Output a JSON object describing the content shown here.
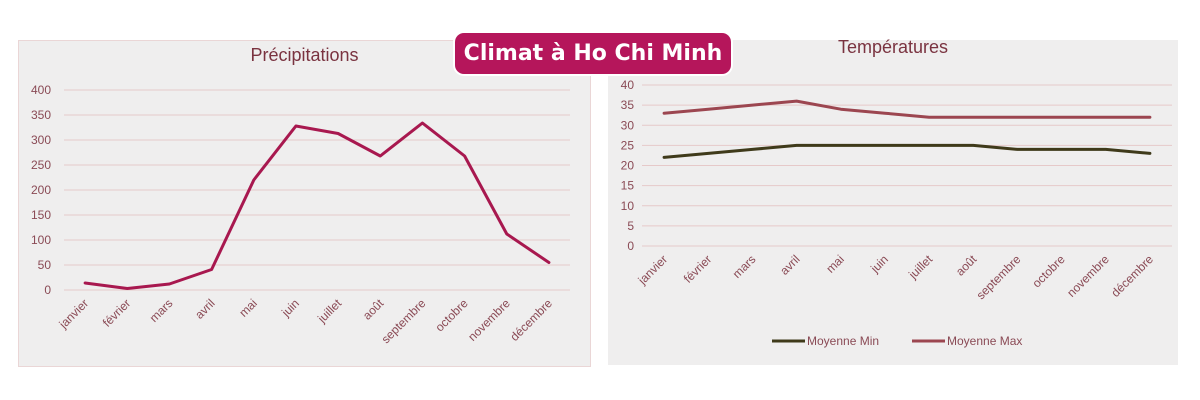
{
  "banner": {
    "title": "Climat à Ho Chi Minh"
  },
  "colors": {
    "banner": "#b5165b",
    "precip_line": "#a8184f",
    "min_line": "#3f3a1a",
    "max_line": "#9c4650",
    "grid": "#e6c9c9"
  },
  "chart_data": [
    {
      "type": "line",
      "title": "Précipitations",
      "categories": [
        "janvier",
        "février",
        "mars",
        "avril",
        "mai",
        "juin",
        "juillet",
        "août",
        "septembre",
        "octobre",
        "novembre",
        "décembre"
      ],
      "series": [
        {
          "values": [
            14,
            3,
            12,
            41,
            220,
            328,
            313,
            268,
            334,
            268,
            112,
            55
          ]
        }
      ],
      "ylim": [
        0,
        400
      ],
      "yticks": [
        0,
        50,
        100,
        150,
        200,
        250,
        300,
        350,
        400
      ],
      "grid": true,
      "legend": "none"
    },
    {
      "type": "line",
      "title": "Températures",
      "categories": [
        "janvier",
        "février",
        "mars",
        "avril",
        "mai",
        "juin",
        "juillet",
        "août",
        "septembre",
        "octobre",
        "novembre",
        "décembre"
      ],
      "series": [
        {
          "name": "Moyenne Min",
          "values": [
            22,
            23,
            24,
            25,
            25,
            25,
            25,
            25,
            24,
            24,
            24,
            23
          ]
        },
        {
          "name": "Moyenne Max",
          "values": [
            33,
            34,
            35,
            36,
            34,
            33,
            32,
            32,
            32,
            32,
            32,
            32
          ]
        }
      ],
      "ylim": [
        0,
        40
      ],
      "yticks": [
        0,
        5,
        10,
        15,
        20,
        25,
        30,
        35,
        40
      ],
      "grid": true,
      "legend": "bottom"
    }
  ]
}
